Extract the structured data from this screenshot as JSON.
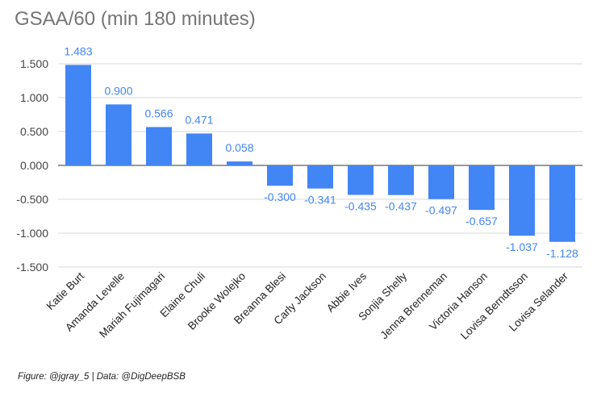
{
  "chart_data": {
    "type": "bar",
    "title": "GSAA/60 (min 180 minutes)",
    "categories": [
      "Katie Burt",
      "Amanda Levelle",
      "Mariah Fujimagari",
      "Elaine Chuli",
      "Brooke Wolejko",
      "Breanna Blesi",
      "Carly Jackson",
      "Abbie Ives",
      "Sonjia Shelly",
      "Jenna Brenneman",
      "Victoria Hanson",
      "Lovisa Berndtsson",
      "Lovisa Selander"
    ],
    "values": [
      1.483,
      0.9,
      0.566,
      0.471,
      0.058,
      -0.3,
      -0.341,
      -0.435,
      -0.437,
      -0.497,
      -0.657,
      -1.037,
      -1.128
    ],
    "data_labels": [
      "1.483",
      "0.900",
      "0.566",
      "0.471",
      "0.058",
      "-0.300",
      "-0.341",
      "-0.435",
      "-0.437",
      "-0.497",
      "-0.657",
      "-1.037",
      "-1.128"
    ],
    "y_ticks": [
      1.5,
      1.0,
      0.5,
      0.0,
      -0.5,
      -1.0,
      -1.5
    ],
    "y_tick_labels": [
      "1.500",
      "1.000",
      "0.500",
      "0.000",
      "-0.500",
      "-1.000",
      "-1.500"
    ],
    "ylim": [
      -1.5,
      1.5
    ],
    "grid": true,
    "legend": "none",
    "xlabel": "",
    "ylabel": "",
    "bar_color": "#4285F4",
    "label_color": "#4285F4"
  },
  "footer": "Figure: @jgray_5  |  Data: @DigDeepBSB"
}
